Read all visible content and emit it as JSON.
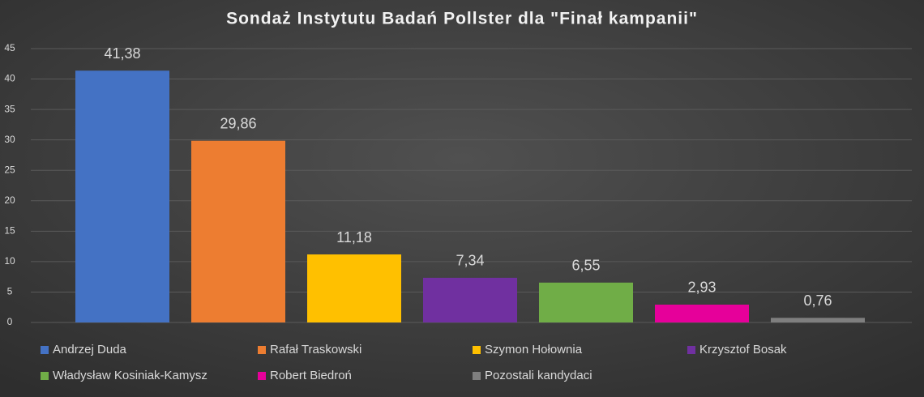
{
  "chart_data": {
    "type": "bar",
    "title": "Sondaż Instytutu Badań Pollster dla \"Finał kampanii\"",
    "series": [
      {
        "name": "Andrzej Duda",
        "color": "#4472c4",
        "values": [
          41.38
        ],
        "value_labels": [
          "41,38"
        ]
      },
      {
        "name": "Rafał Traskowski",
        "color": "#ed7d31",
        "values": [
          29.86
        ],
        "value_labels": [
          "29,86"
        ]
      },
      {
        "name": "Szymon Hołownia",
        "color": "#ffc000",
        "values": [
          11.18
        ],
        "value_labels": [
          "11,18"
        ]
      },
      {
        "name": "Krzysztof Bosak",
        "color": "#7030a0",
        "values": [
          7.34
        ],
        "value_labels": [
          "7,34"
        ]
      },
      {
        "name": "Władysław Kosiniak-Kamysz",
        "color": "#70ad47",
        "values": [
          6.55
        ],
        "value_labels": [
          "6,55"
        ]
      },
      {
        "name": "Robert Biedroń",
        "color": "#e6009a",
        "values": [
          2.93
        ],
        "value_labels": [
          "2,93"
        ]
      },
      {
        "name": "Pozostali kandydaci",
        "color": "#7f7f7f",
        "values": [
          0.76
        ],
        "value_labels": [
          "0,76"
        ]
      }
    ],
    "ylim": [
      0,
      45
    ],
    "yticks": [
      0,
      5,
      10,
      15,
      20,
      25,
      30,
      35,
      40,
      45
    ],
    "grid": true,
    "legend": "bottom"
  }
}
